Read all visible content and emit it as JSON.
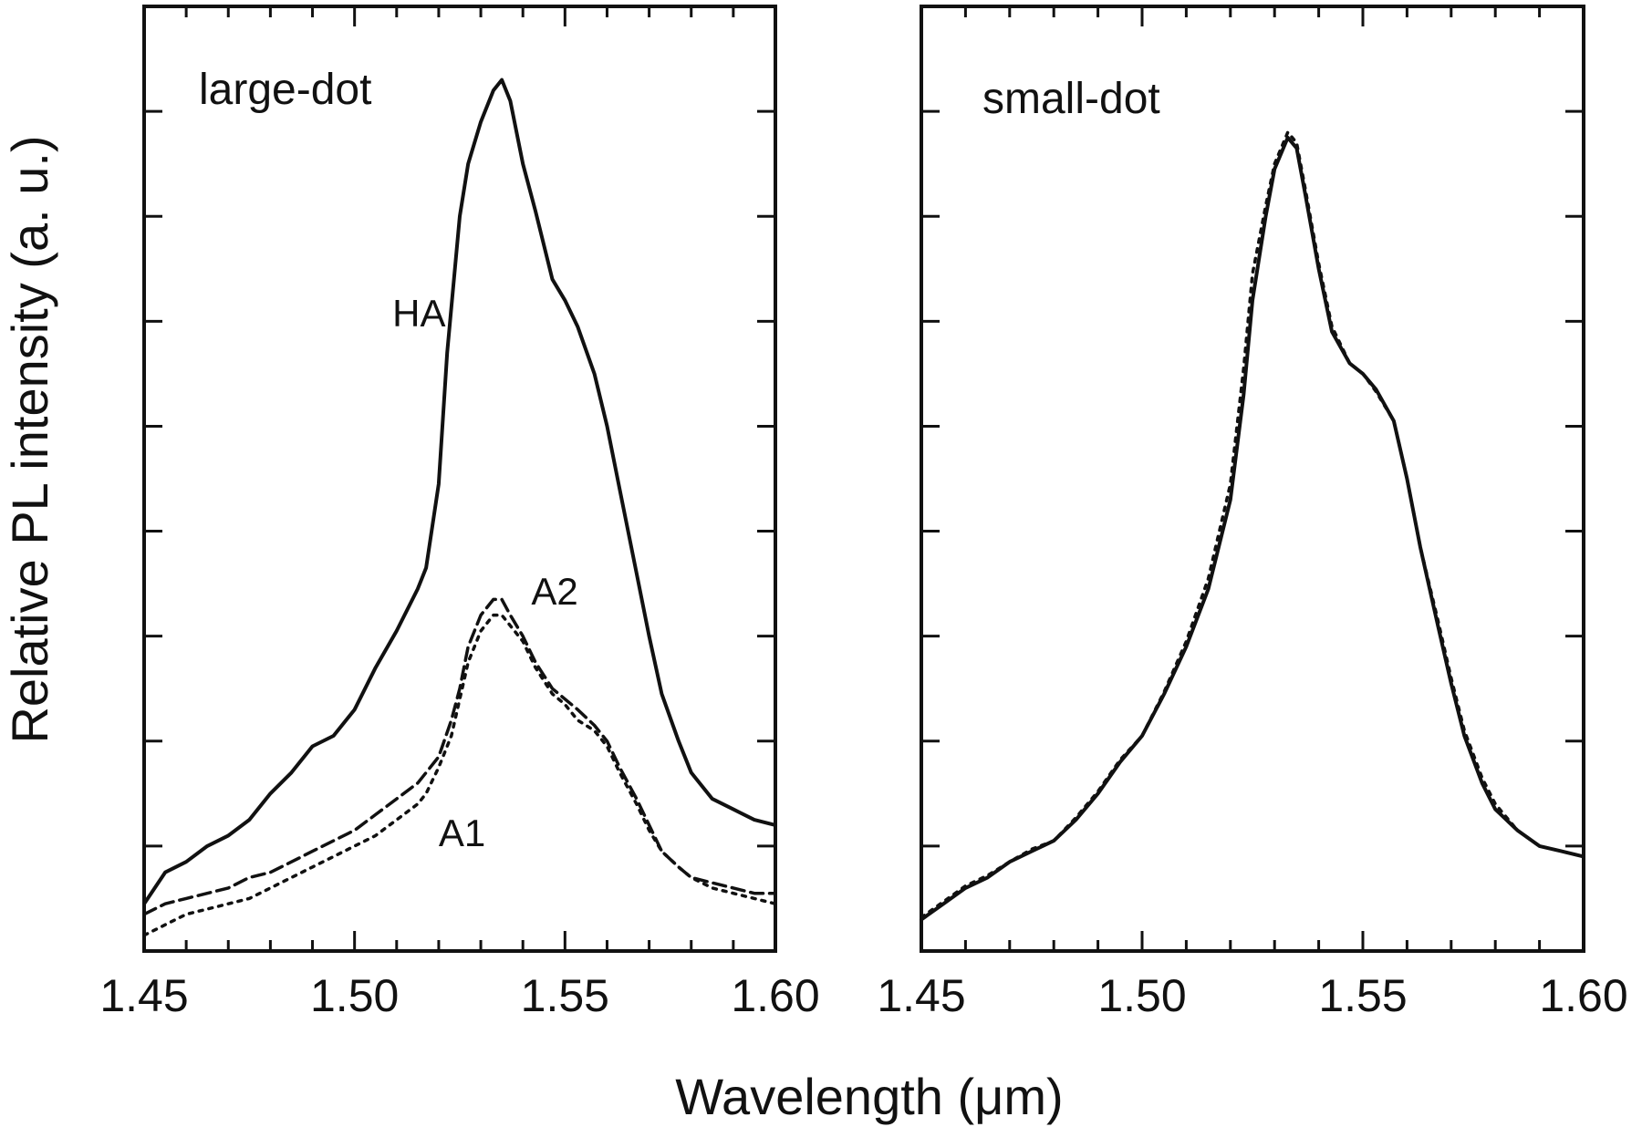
{
  "figure": {
    "ylabel": "Relative PL intensity (a. u.)",
    "xlabel": "Wavelength (μm)"
  },
  "colors": {
    "ink": "#111111",
    "background": "#ffffff"
  },
  "chart_data": [
    {
      "type": "line",
      "panel_label": "large-dot",
      "xlim": [
        1.45,
        1.6
      ],
      "ylim": [
        0,
        9
      ],
      "x_ticks": [
        "1.45",
        "1.50",
        "1.55",
        "1.60"
      ],
      "y_tick_labels": "none",
      "series": [
        {
          "name": "HA",
          "style": "solid",
          "x": [
            1.45,
            1.455,
            1.46,
            1.465,
            1.47,
            1.475,
            1.48,
            1.485,
            1.49,
            1.495,
            1.5,
            1.505,
            1.51,
            1.515,
            1.517,
            1.52,
            1.522,
            1.525,
            1.527,
            1.53,
            1.533,
            1.535,
            1.537,
            1.54,
            1.543,
            1.547,
            1.55,
            1.553,
            1.557,
            1.56,
            1.563,
            1.567,
            1.57,
            1.573,
            1.577,
            1.58,
            1.585,
            1.59,
            1.595,
            1.6
          ],
          "y": [
            0.45,
            0.75,
            0.85,
            1.0,
            1.1,
            1.25,
            1.5,
            1.7,
            1.95,
            2.05,
            2.3,
            2.7,
            3.05,
            3.45,
            3.65,
            4.45,
            5.7,
            7.0,
            7.5,
            7.9,
            8.2,
            8.3,
            8.1,
            7.5,
            7.05,
            6.4,
            6.2,
            5.95,
            5.5,
            5.0,
            4.4,
            3.6,
            3.0,
            2.45,
            2.0,
            1.7,
            1.45,
            1.35,
            1.25,
            1.2
          ]
        },
        {
          "name": "A2",
          "style": "dashed",
          "x": [
            1.45,
            1.455,
            1.46,
            1.465,
            1.47,
            1.475,
            1.48,
            1.485,
            1.49,
            1.495,
            1.5,
            1.505,
            1.51,
            1.515,
            1.517,
            1.52,
            1.523,
            1.525,
            1.527,
            1.53,
            1.533,
            1.535,
            1.537,
            1.54,
            1.543,
            1.547,
            1.55,
            1.553,
            1.557,
            1.56,
            1.563,
            1.567,
            1.57,
            1.573,
            1.577,
            1.58,
            1.585,
            1.59,
            1.595,
            1.6
          ],
          "y": [
            0.35,
            0.45,
            0.5,
            0.55,
            0.6,
            0.7,
            0.75,
            0.85,
            0.95,
            1.05,
            1.15,
            1.3,
            1.45,
            1.6,
            1.7,
            1.85,
            2.2,
            2.5,
            2.9,
            3.2,
            3.35,
            3.35,
            3.2,
            3.0,
            2.75,
            2.5,
            2.4,
            2.3,
            2.15,
            2.0,
            1.75,
            1.45,
            1.2,
            0.95,
            0.8,
            0.7,
            0.65,
            0.6,
            0.55,
            0.55
          ]
        },
        {
          "name": "A1",
          "style": "dotted",
          "x": [
            1.45,
            1.455,
            1.46,
            1.465,
            1.47,
            1.475,
            1.48,
            1.485,
            1.49,
            1.495,
            1.5,
            1.505,
            1.51,
            1.515,
            1.517,
            1.52,
            1.523,
            1.525,
            1.527,
            1.53,
            1.533,
            1.535,
            1.537,
            1.54,
            1.543,
            1.547,
            1.55,
            1.553,
            1.557,
            1.56,
            1.563,
            1.567,
            1.57,
            1.573,
            1.577,
            1.58,
            1.585,
            1.59,
            1.595,
            1.6
          ],
          "y": [
            0.15,
            0.25,
            0.35,
            0.4,
            0.45,
            0.5,
            0.6,
            0.7,
            0.8,
            0.9,
            1.0,
            1.1,
            1.25,
            1.4,
            1.5,
            1.75,
            2.05,
            2.4,
            2.75,
            3.05,
            3.2,
            3.2,
            3.1,
            2.95,
            2.7,
            2.45,
            2.35,
            2.2,
            2.1,
            1.95,
            1.7,
            1.4,
            1.15,
            0.95,
            0.8,
            0.7,
            0.6,
            0.55,
            0.5,
            0.45
          ]
        }
      ],
      "annotations": [
        {
          "text": "HA",
          "x": 1.509,
          "y": 5.95
        },
        {
          "text": "A2",
          "x": 1.542,
          "y": 3.3
        },
        {
          "text": "A1",
          "x": 1.52,
          "y": 1.0
        }
      ]
    },
    {
      "type": "line",
      "panel_label": "small-dot",
      "xlim": [
        1.45,
        1.6
      ],
      "ylim": [
        0,
        9
      ],
      "x_ticks": [
        "1.45",
        "1.50",
        "1.55",
        "1.60"
      ],
      "y_tick_labels": "none",
      "series": [
        {
          "style": "solid",
          "x": [
            1.45,
            1.455,
            1.46,
            1.465,
            1.47,
            1.475,
            1.48,
            1.485,
            1.49,
            1.495,
            1.5,
            1.505,
            1.51,
            1.515,
            1.52,
            1.523,
            1.525,
            1.528,
            1.53,
            1.533,
            1.535,
            1.537,
            1.54,
            1.543,
            1.547,
            1.55,
            1.553,
            1.557,
            1.56,
            1.563,
            1.567,
            1.57,
            1.573,
            1.577,
            1.58,
            1.585,
            1.59,
            1.595,
            1.6
          ],
          "y": [
            0.3,
            0.45,
            0.6,
            0.7,
            0.85,
            0.95,
            1.05,
            1.25,
            1.5,
            1.8,
            2.05,
            2.45,
            2.9,
            3.45,
            4.3,
            5.3,
            6.2,
            7.0,
            7.45,
            7.75,
            7.65,
            7.2,
            6.5,
            5.9,
            5.6,
            5.5,
            5.35,
            5.05,
            4.5,
            3.85,
            3.1,
            2.55,
            2.05,
            1.6,
            1.35,
            1.15,
            1.0,
            0.95,
            0.9
          ]
        },
        {
          "style": "dotted",
          "x": [
            1.45,
            1.455,
            1.46,
            1.465,
            1.47,
            1.475,
            1.48,
            1.485,
            1.49,
            1.495,
            1.5,
            1.505,
            1.51,
            1.515,
            1.52,
            1.523,
            1.525,
            1.528,
            1.53,
            1.533,
            1.535,
            1.537,
            1.54,
            1.543,
            1.547,
            1.55,
            1.553,
            1.557,
            1.56,
            1.563,
            1.567,
            1.57,
            1.573,
            1.577,
            1.58,
            1.585,
            1.59,
            1.595,
            1.6
          ],
          "y": [
            0.32,
            0.47,
            0.62,
            0.72,
            0.85,
            0.97,
            1.05,
            1.27,
            1.52,
            1.82,
            2.05,
            2.47,
            2.95,
            3.55,
            4.45,
            5.55,
            6.45,
            7.1,
            7.5,
            7.8,
            7.7,
            7.25,
            6.55,
            5.95,
            5.6,
            5.5,
            5.33,
            5.05,
            4.5,
            3.85,
            3.15,
            2.6,
            2.1,
            1.65,
            1.4,
            1.15,
            1.0,
            0.95,
            0.9
          ]
        }
      ],
      "annotations": []
    }
  ]
}
